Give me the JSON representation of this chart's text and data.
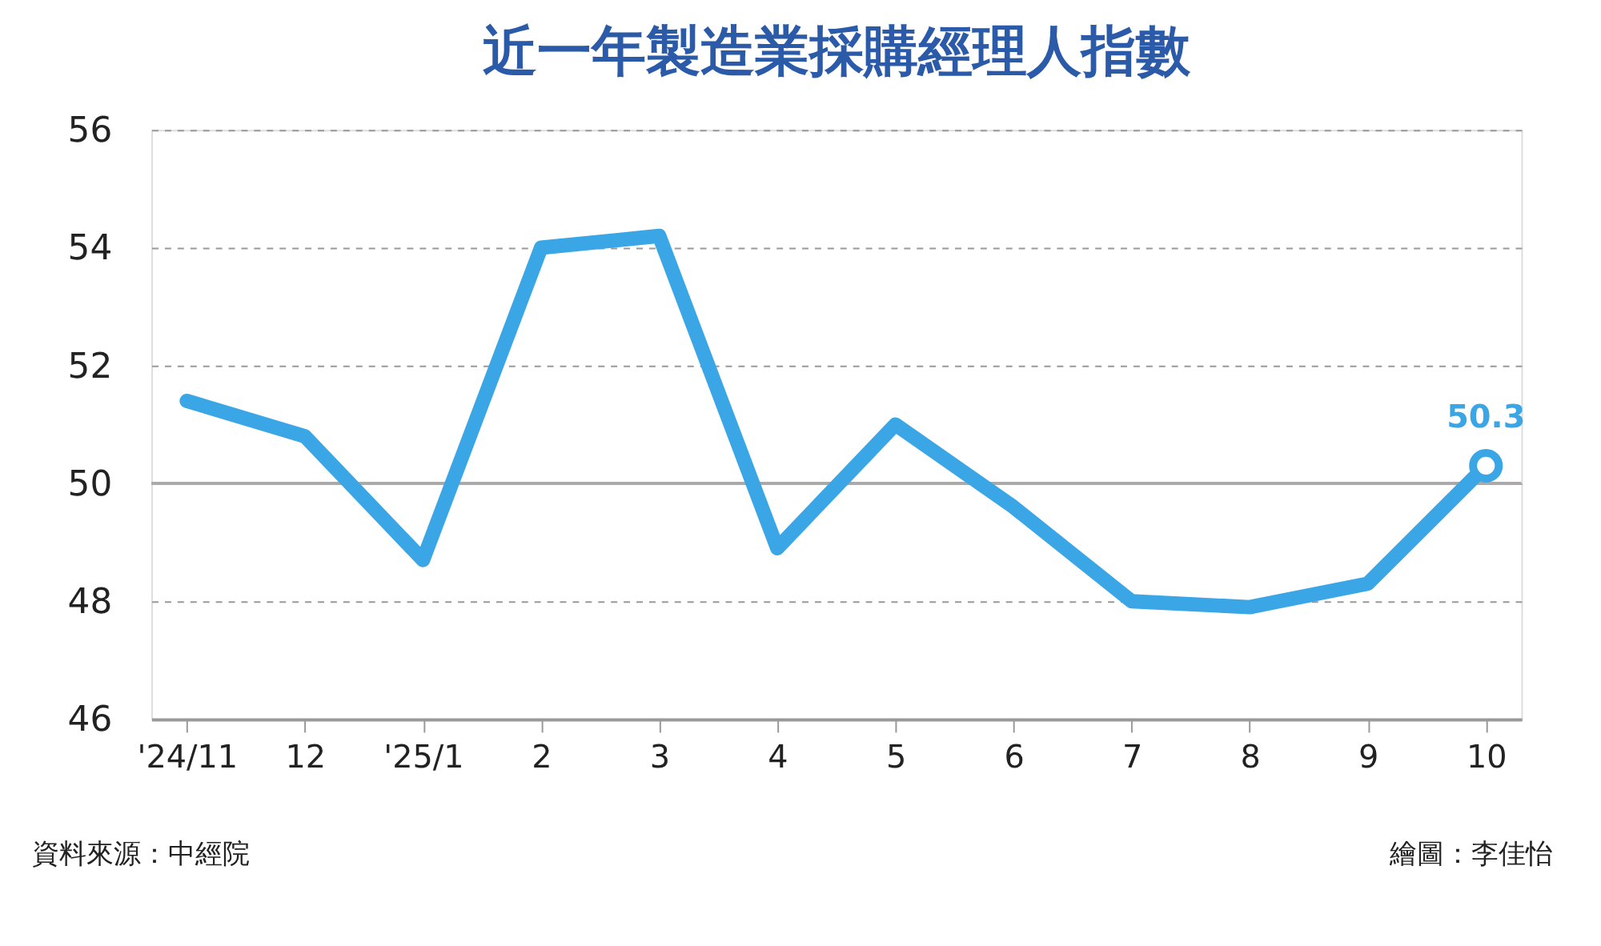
{
  "chart_data": {
    "type": "line",
    "title": "近一年製造業採購經理人指數",
    "categories": [
      "'24/11",
      "12",
      "'25/1",
      "2",
      "3",
      "4",
      "5",
      "6",
      "7",
      "8",
      "9",
      "10"
    ],
    "values": [
      51.4,
      50.8,
      48.7,
      54.0,
      54.2,
      48.9,
      51.0,
      49.6,
      48.0,
      47.9,
      48.3,
      50.3
    ],
    "color": "#3aa6e6",
    "value_labels": [
      null,
      null,
      null,
      null,
      null,
      null,
      null,
      null,
      null,
      null,
      null,
      "50.3"
    ],
    "ylim": [
      46,
      56
    ],
    "yticks": [
      46,
      48,
      50,
      52,
      54,
      56
    ],
    "grid": "y",
    "ref_lines": [
      {
        "axis": "y",
        "value": 50,
        "label": null,
        "line_style": "solid"
      }
    ],
    "annotations": [
      "資料來源：中經院",
      "繪圖：李佳怡"
    ]
  }
}
